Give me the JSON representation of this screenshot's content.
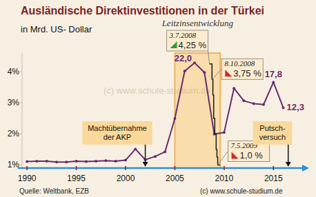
{
  "chart_data": {
    "type": "line",
    "title": "Ausländische Direktinvestitionen in der Türkei",
    "subtitle": "in Mrd. US- Dollar",
    "xlim": [
      1989.5,
      2017.5
    ],
    "xticks": [
      1990,
      1995,
      2000,
      2005,
      2010,
      2015
    ],
    "ylim": [
      0.9,
      4.6
    ],
    "yticks": [
      {
        "value": 1,
        "label": "1%"
      },
      {
        "value": 2,
        "label": "2%"
      },
      {
        "value": 3,
        "label": "3%"
      },
      {
        "value": 4,
        "label": "4%"
      }
    ],
    "y2lim": [
      -0.7,
      24.1
    ],
    "grid": false,
    "series": [
      {
        "color": "#6b2a6e",
        "axis": "y2",
        "marker": "circle",
        "line_style": "solid",
        "data_labels": true,
        "x": [
          1990,
          1991,
          1992,
          1993,
          1994,
          1995,
          1996,
          1997,
          1998,
          1999,
          2000,
          2001,
          2002,
          2003,
          2004,
          2005,
          2006,
          2007,
          2008,
          2009,
          2010,
          2011,
          2012,
          2013,
          2014,
          2015,
          2016
        ],
        "values": [
          0.7,
          0.8,
          0.8,
          0.6,
          0.6,
          0.8,
          0.7,
          0.8,
          0.9,
          0.8,
          1.0,
          3.4,
          1.1,
          1.8,
          2.8,
          10.0,
          20.2,
          22.0,
          19.9,
          6.6,
          7.0,
          16.5,
          13.8,
          13.2,
          13.0,
          17.8,
          12.3
        ],
        "value_labels": [
          null,
          null,
          null,
          null,
          null,
          null,
          null,
          null,
          null,
          null,
          null,
          null,
          null,
          null,
          null,
          null,
          null,
          "22,0",
          null,
          null,
          null,
          null,
          null,
          null,
          null,
          "17,8",
          "12,3"
        ]
      },
      {
        "name": "Leitzinsentwicklung",
        "color": "#1a1a1a",
        "line_style": "solid",
        "x": [
          2008.51,
          2008.77,
          2008.77,
          2008.86,
          2008.86,
          2008.94,
          2008.94,
          2009.05,
          2009.05,
          2009.19,
          2009.19,
          2009.27,
          2009.27,
          2009.35,
          2009.35,
          2009.6
        ],
        "values": [
          4.25,
          4.25,
          3.75,
          3.75,
          3.25,
          3.25,
          2.5,
          2.5,
          2,
          2,
          1.5,
          1.5,
          1.25,
          1.25,
          1,
          1
        ]
      }
    ],
    "annotations": [
      {
        "date": "3.7.2008",
        "label": "4,25 %",
        "x": 2008.51,
        "y": 4.25
      },
      {
        "date": "8.10.2008",
        "label": "3,75 %",
        "x": 2008.77,
        "y": 3.75
      },
      {
        "date": "7.5.2009",
        "label": "1,0 %",
        "x": 2009.35,
        "y": 1.0
      },
      {
        "text": [
          "Machtübernahme",
          "der AKP"
        ],
        "x": 2002
      },
      {
        "text": [
          "Putsch-",
          "versuch"
        ],
        "x": 2016.5
      }
    ],
    "source": "Quelle: Weltbank, EZB",
    "credit": "(c) www.schule-studium.de",
    "watermark": "(c) www.schule-studium.de"
  }
}
